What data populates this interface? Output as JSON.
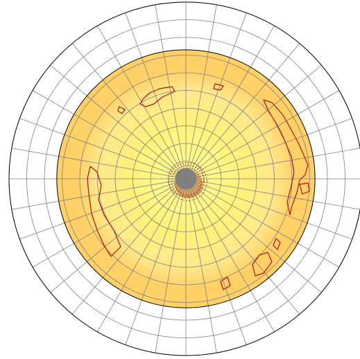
{
  "chart_data": {
    "type": "polar_heatmap",
    "title": "",
    "rings": 10,
    "spokes": 36,
    "radial_range": [
      0,
      1
    ],
    "data_extent": 0.73,
    "grid": true,
    "legend": "none",
    "colors": {
      "outer_fill": "#ffffff",
      "grid": "#7f7f7f",
      "outline": "#000000",
      "band_outer": "#ffd066",
      "band_mid": "#ffe88a",
      "band_inner": "#fff27a",
      "center": "#ffff99",
      "contour": "#b01010",
      "center_spot": "#808080"
    },
    "radial_profile": [
      {
        "r": 0.0,
        "level": "center"
      },
      {
        "r": 0.3,
        "level": "band_inner"
      },
      {
        "r": 0.5,
        "level": "band_mid"
      },
      {
        "r": 0.62,
        "level": "band_outer"
      },
      {
        "r": 0.73,
        "level": "band_outer"
      }
    ],
    "contour_regions": [
      {
        "name": "top-left",
        "points": [
          [
            -62,
            -115
          ],
          [
            -52,
            -124
          ],
          [
            -38,
            -130
          ],
          [
            -20,
            -133
          ],
          [
            -16,
            -126
          ],
          [
            -34,
            -118
          ],
          [
            -46,
            -108
          ],
          [
            -58,
            -104
          ],
          [
            -66,
            -108
          ]
        ]
      },
      {
        "name": "top-right-small",
        "points": [
          [
            42,
            -137
          ],
          [
            54,
            -134
          ],
          [
            50,
            -128
          ],
          [
            40,
            -130
          ]
        ]
      },
      {
        "name": "left-small",
        "points": [
          [
            -96,
            -104
          ],
          [
            -88,
            -100
          ],
          [
            -92,
            -94
          ],
          [
            -98,
            -98
          ]
        ]
      },
      {
        "name": "right-edge",
        "points": [
          [
            112,
            -114
          ],
          [
            124,
            -110
          ],
          [
            140,
            -92
          ],
          [
            150,
            -74
          ],
          [
            162,
            -52
          ],
          [
            170,
            -34
          ],
          [
            176,
            -20
          ],
          [
            172,
            -6
          ],
          [
            164,
            2
          ],
          [
            160,
            20
          ],
          [
            152,
            42
          ],
          [
            150,
            52
          ],
          [
            146,
            34
          ],
          [
            152,
            10
          ],
          [
            156,
            -10
          ],
          [
            152,
            -32
          ],
          [
            142,
            -56
          ],
          [
            130,
            -80
          ],
          [
            118,
            -100
          ]
        ]
      },
      {
        "name": "right-tab",
        "points": [
          [
            164,
            8
          ],
          [
            176,
            6
          ],
          [
            178,
            18
          ],
          [
            168,
            22
          ]
        ]
      },
      {
        "name": "left-edge",
        "points": [
          [
            -138,
            -18
          ],
          [
            -128,
            -10
          ],
          [
            -122,
            10
          ],
          [
            -126,
            30
          ],
          [
            -118,
            52
          ],
          [
            -104,
            74
          ],
          [
            -94,
            98
          ],
          [
            -108,
            112
          ],
          [
            -118,
            96
          ],
          [
            -128,
            74
          ],
          [
            -136,
            50
          ],
          [
            -140,
            22
          ],
          [
            -142,
            0
          ]
        ]
      },
      {
        "name": "bottom-right-a",
        "points": [
          [
            96,
            124
          ],
          [
            106,
            110
          ],
          [
            118,
            106
          ],
          [
            124,
            120
          ],
          [
            112,
            136
          ],
          [
            100,
            140
          ]
        ]
      },
      {
        "name": "bottom-right-b",
        "points": [
          [
            130,
            86
          ],
          [
            136,
            92
          ],
          [
            132,
            102
          ],
          [
            126,
            96
          ]
        ]
      },
      {
        "name": "bottom-right-c",
        "points": [
          [
            50,
            148
          ],
          [
            60,
            142
          ],
          [
            64,
            154
          ],
          [
            54,
            160
          ]
        ]
      }
    ],
    "center_spot_radius": 0.06
  }
}
